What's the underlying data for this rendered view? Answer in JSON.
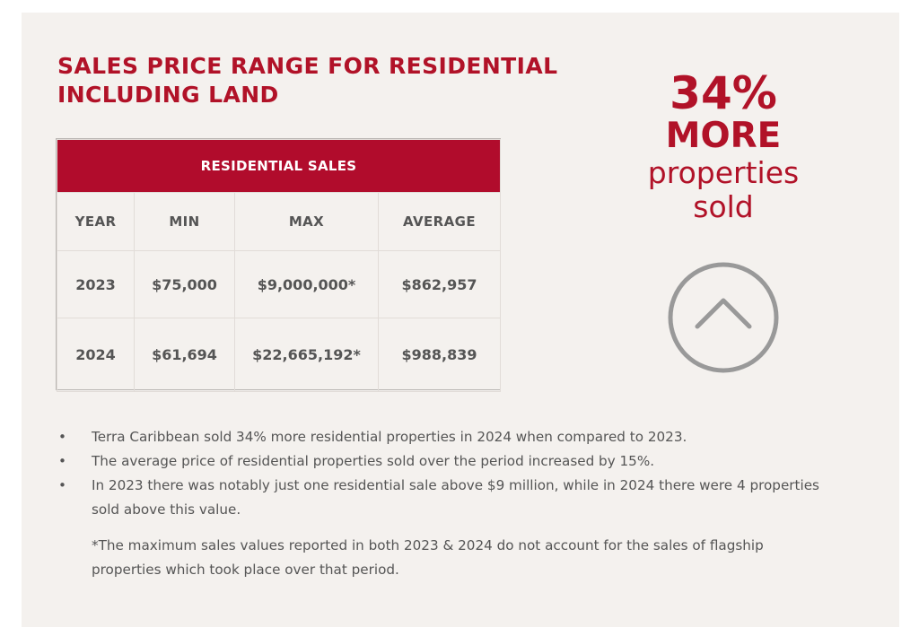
{
  "title": "SALES PRICE RANGE FOR RESIDENTIAL INCLUDING LAND",
  "table": {
    "caption": "RESIDENTIAL SALES",
    "headers": [
      "YEAR",
      "MIN",
      "MAX",
      "AVERAGE"
    ],
    "rows": [
      [
        "2023",
        "$75,000",
        "$9,000,000*",
        "$862,957"
      ],
      [
        "2024",
        "$61,694",
        "$22,665,192*",
        "$988,839"
      ]
    ]
  },
  "highlight": {
    "percent": "34%",
    "more": "MORE",
    "line1": "properties",
    "line2": "sold",
    "icon": "chevron-up-circle-icon"
  },
  "bullets": [
    "Terra Caribbean sold 34% more residential properties in 2024 when compared to 2023.",
    "The average price of residential properties sold over the period increased by 15%.",
    "In 2023 there was notably just one residential sale above $9 million, while in 2024 there were 4 properties sold above this value."
  ],
  "footnote": "*The maximum sales values reported in both 2023 & 2024 do not account for the sales of flagship properties which took place over that period.",
  "colors": {
    "accent": "#b11228",
    "table_header": "#b10c2c",
    "background": "#f4f1ee",
    "text": "#555555",
    "icon": "#999999"
  }
}
